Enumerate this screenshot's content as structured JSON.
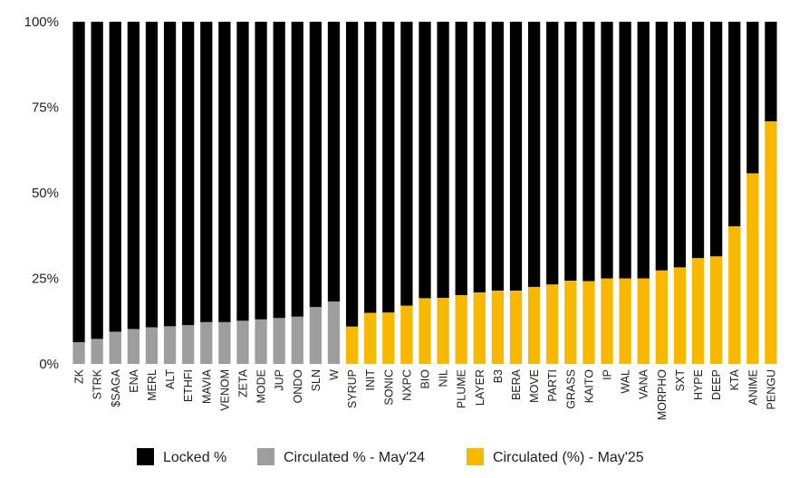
{
  "chart_data": {
    "type": "bar",
    "stacked": true,
    "percent_stacked": true,
    "ylim": [
      0,
      100
    ],
    "yticks": [
      {
        "value": 0,
        "label": "0%"
      },
      {
        "value": 25,
        "label": "25%"
      },
      {
        "value": 50,
        "label": "50%"
      },
      {
        "value": 75,
        "label": "75%"
      },
      {
        "value": 100,
        "label": "100%"
      }
    ],
    "grid": false,
    "legend_position": "bottom",
    "colors": {
      "locked": "#000000",
      "may24": "#9e9e9e",
      "may25": "#f9b800"
    },
    "legend": [
      {
        "key": "locked",
        "label": "Locked %"
      },
      {
        "key": "may24",
        "label": "Circulated % - May'24"
      },
      {
        "key": "may25",
        "label": "Circulated (%) - May'25"
      }
    ],
    "bars": [
      {
        "category": "ZK",
        "series": "may24",
        "circulated": 6.3
      },
      {
        "category": "STRK",
        "series": "may24",
        "circulated": 7.3
      },
      {
        "category": "$SAGA",
        "series": "may24",
        "circulated": 9.4
      },
      {
        "category": "ENA",
        "series": "may24",
        "circulated": 10.2
      },
      {
        "category": "MERL",
        "series": "may24",
        "circulated": 10.7
      },
      {
        "category": "ALT",
        "series": "may24",
        "circulated": 11.0
      },
      {
        "category": "ETHFI",
        "series": "may24",
        "circulated": 11.3
      },
      {
        "category": "MAVIA",
        "series": "may24",
        "circulated": 12.2
      },
      {
        "category": "VENOM",
        "series": "may24",
        "circulated": 12.2
      },
      {
        "category": "ZETA",
        "series": "may24",
        "circulated": 12.6
      },
      {
        "category": "MODE",
        "series": "may24",
        "circulated": 13.0
      },
      {
        "category": "JUP",
        "series": "may24",
        "circulated": 13.4
      },
      {
        "category": "ONDO",
        "series": "may24",
        "circulated": 13.8
      },
      {
        "category": "SLN",
        "series": "may24",
        "circulated": 16.6
      },
      {
        "category": "W",
        "series": "may24",
        "circulated": 18.2
      },
      {
        "category": "SYRUP",
        "series": "may25",
        "circulated": 10.9
      },
      {
        "category": "INIT",
        "series": "may25",
        "circulated": 14.9
      },
      {
        "category": "SONIC",
        "series": "may25",
        "circulated": 15.0
      },
      {
        "category": "NXPC",
        "series": "may25",
        "circulated": 17.0
      },
      {
        "category": "BIO",
        "series": "may25",
        "circulated": 19.2
      },
      {
        "category": "NIL",
        "series": "may25",
        "circulated": 19.3
      },
      {
        "category": "PLUME",
        "series": "may25",
        "circulated": 20.1
      },
      {
        "category": "LAYER",
        "series": "may25",
        "circulated": 20.9
      },
      {
        "category": "B3",
        "series": "may25",
        "circulated": 21.4
      },
      {
        "category": "BERA",
        "series": "may25",
        "circulated": 21.4
      },
      {
        "category": "MOVE",
        "series": "may25",
        "circulated": 22.5
      },
      {
        "category": "PARTI",
        "series": "may25",
        "circulated": 23.2
      },
      {
        "category": "GRASS",
        "series": "may25",
        "circulated": 24.3
      },
      {
        "category": "KAITO",
        "series": "may25",
        "circulated": 24.2
      },
      {
        "category": "IP",
        "series": "may25",
        "circulated": 25.0
      },
      {
        "category": "WAL",
        "series": "may25",
        "circulated": 25.0
      },
      {
        "category": "VANA",
        "series": "may25",
        "circulated": 25.0
      },
      {
        "category": "MORPHO",
        "series": "may25",
        "circulated": 27.3
      },
      {
        "category": "SXT",
        "series": "may25",
        "circulated": 28.2
      },
      {
        "category": "HYPE",
        "series": "may25",
        "circulated": 30.9
      },
      {
        "category": "DEEP",
        "series": "may25",
        "circulated": 31.4
      },
      {
        "category": "KTA",
        "series": "may25",
        "circulated": 40.2
      },
      {
        "category": "ANIME",
        "series": "may25",
        "circulated": 55.7
      },
      {
        "category": "PENGU",
        "series": "may25",
        "circulated": 70.9
      }
    ]
  }
}
